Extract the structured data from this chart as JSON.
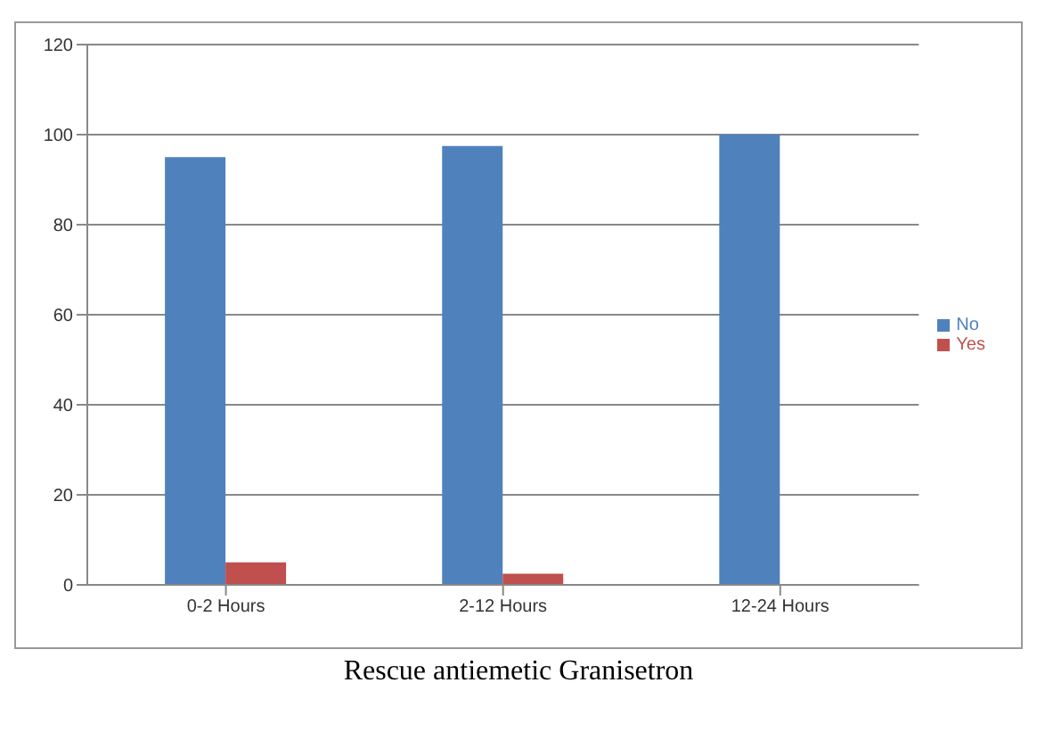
{
  "chart_data": {
    "type": "bar",
    "categories": [
      "0-2 Hours",
      "2-12 Hours",
      "12-24 Hours"
    ],
    "series": [
      {
        "name": "No",
        "color": "#4f81bd",
        "values": [
          95,
          97.5,
          100
        ]
      },
      {
        "name": "Yes",
        "color": "#c0504d",
        "values": [
          5,
          2.5,
          0
        ]
      }
    ],
    "ylim": [
      0,
      120
    ],
    "yticks": [
      0,
      20,
      40,
      60,
      80,
      100,
      120
    ],
    "grid": "y",
    "legend": "right",
    "annotations": [
      "Rescue antiemetic Granisetron"
    ]
  }
}
